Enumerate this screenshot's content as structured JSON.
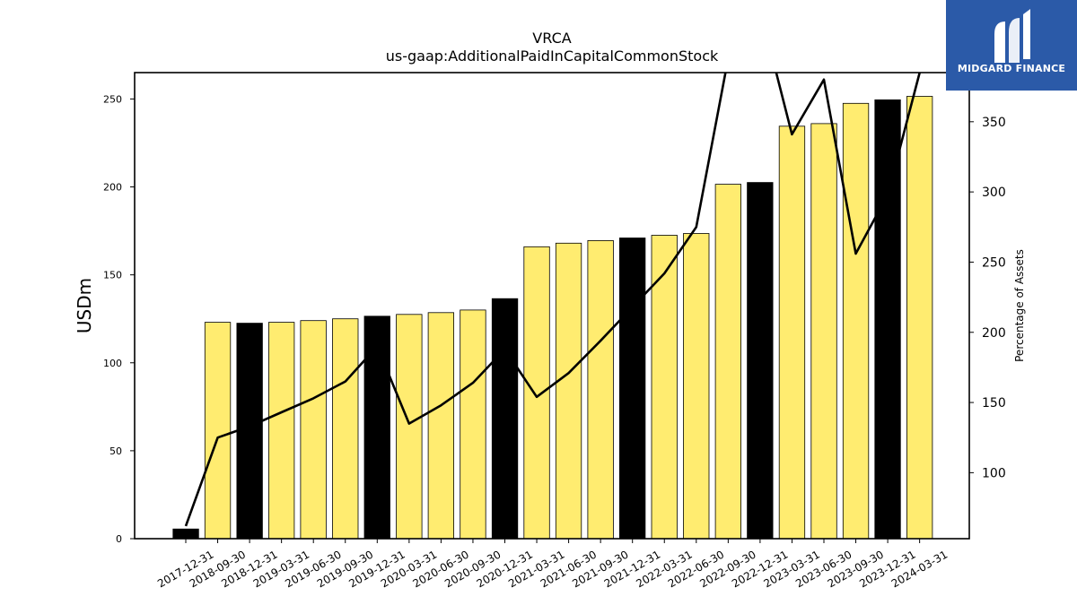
{
  "chart_data": {
    "type": "bar",
    "title": "VRCA",
    "subtitle": "us-gaap:AdditionalPaidInCapitalCommonStock",
    "ylabel": "USDm",
    "y2label": "Percentage of Assets",
    "ylim": [
      0,
      265
    ],
    "y2lim": [
      53,
      385
    ],
    "yticks": [
      0,
      50,
      100,
      150,
      200,
      250
    ],
    "y2ticks": [
      100,
      150,
      200,
      250,
      300,
      350
    ],
    "grid": false,
    "categories": [
      "2017-12-31",
      "2018-09-30",
      "2018-12-31",
      "2019-03-31",
      "2019-06-30",
      "2019-09-30",
      "2019-12-31",
      "2020-03-31",
      "2020-06-30",
      "2020-09-30",
      "2020-12-31",
      "2021-03-31",
      "2021-06-30",
      "2021-09-30",
      "2021-12-31",
      "2022-03-31",
      "2022-06-30",
      "2022-09-30",
      "2022-12-31",
      "2023-03-31",
      "2023-06-30",
      "2023-09-30",
      "2023-12-31",
      "2024-03-31"
    ],
    "series": [
      {
        "kind": "bar",
        "values": [
          5.5,
          123,
          122.5,
          123,
          124,
          125,
          126.5,
          127.5,
          128.5,
          130,
          136.5,
          166,
          168,
          169.5,
          171,
          172.5,
          173.5,
          201.5,
          202.5,
          234.5,
          236,
          247.5,
          249.5,
          251.5
        ],
        "highlight": [
          true,
          false,
          true,
          false,
          false,
          false,
          true,
          false,
          false,
          false,
          true,
          false,
          false,
          false,
          true,
          false,
          false,
          false,
          true,
          false,
          false,
          false,
          true,
          false
        ],
        "color": "#ffec70",
        "highlight_color": "#000000"
      },
      {
        "kind": "line",
        "axis": "right",
        "values": [
          62,
          125,
          133,
          143,
          153,
          165,
          190,
          135,
          148,
          164,
          188,
          154,
          171,
          194,
          218,
          242,
          275,
          395,
          430,
          341,
          380,
          256,
          298,
          385
        ],
        "color": "#000000"
      }
    ]
  },
  "logo": {
    "text": "MIDGARD FINANCE",
    "background": "#2b5aa8"
  }
}
